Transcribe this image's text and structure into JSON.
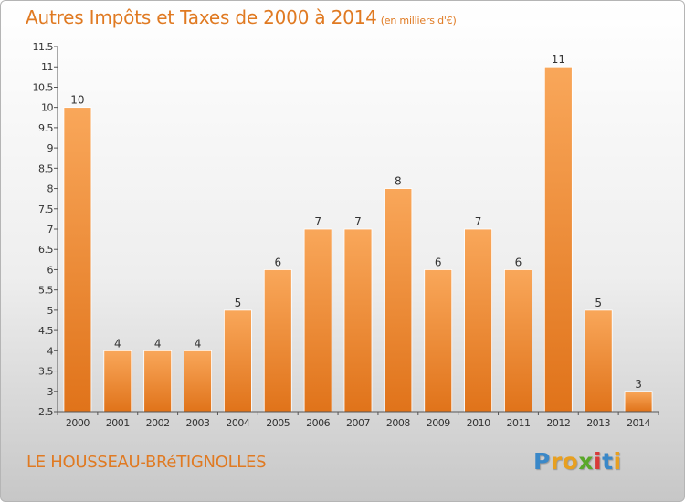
{
  "title": {
    "main": "Autres Impôts et Taxes de 2000 à 2014",
    "unit": "(en milliers d'€)"
  },
  "commune": "LE HOUSSEAU-BRéTIGNOLLES",
  "logo": {
    "text": "Proxiti",
    "letters": [
      {
        "char": "P",
        "color": "#3a88c8"
      },
      {
        "char": "r",
        "color": "#e8a020"
      },
      {
        "char": "o",
        "color": "#e8a020"
      },
      {
        "char": "x",
        "color": "#5aa82a"
      },
      {
        "char": "i",
        "color": "#d83a3a"
      },
      {
        "char": "t",
        "color": "#3a88c8"
      },
      {
        "char": "i",
        "color": "#e8a020"
      }
    ]
  },
  "colors": {
    "bar_light": "#f9a75a",
    "bar_dark": "#e0731a",
    "axis": "#555555",
    "grid_tick": "#555555",
    "text": "#333333"
  },
  "chart_data": {
    "type": "bar",
    "categories": [
      "2000",
      "2001",
      "2002",
      "2003",
      "2004",
      "2005",
      "2006",
      "2007",
      "2008",
      "2009",
      "2010",
      "2011",
      "2012",
      "2013",
      "2014"
    ],
    "values": [
      10,
      4,
      4,
      4,
      5,
      6,
      7,
      7,
      8,
      6,
      7,
      6,
      11,
      5,
      3
    ],
    "data_labels": [
      "10",
      "4",
      "4",
      "4",
      "5",
      "6",
      "7",
      "7",
      "8",
      "6",
      "7",
      "6",
      "11",
      "5",
      "3"
    ],
    "title": "Autres Impôts et Taxes de 2000 à 2014",
    "xlabel": "",
    "ylabel": "",
    "ylim": [
      2.5,
      11.5
    ],
    "yticks": [
      2.5,
      3,
      3.5,
      4,
      4.5,
      5,
      5.5,
      6,
      6.5,
      7,
      7.5,
      8,
      8.5,
      9,
      9.5,
      10,
      10.5,
      11,
      11.5
    ],
    "ytick_labels": [
      "2.5",
      "3",
      "3.5",
      "4",
      "4.5",
      "5",
      "5.5",
      "6",
      "6.5",
      "7",
      "7.5",
      "8",
      "8.5",
      "9",
      "9.5",
      "10",
      "10.5",
      "11",
      "11.5"
    ],
    "grid": false,
    "legend": "none"
  }
}
